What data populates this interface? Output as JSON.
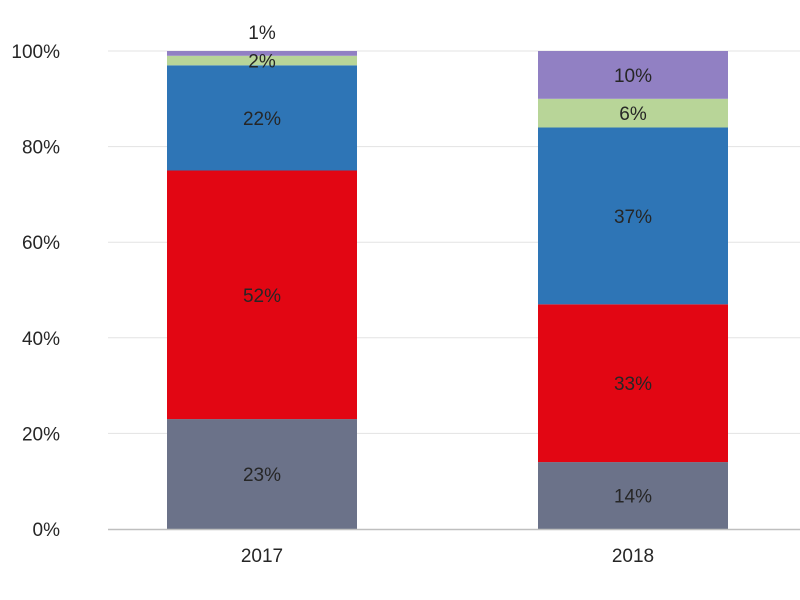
{
  "chart_data": {
    "type": "bar",
    "stacked": true,
    "title": "",
    "xlabel": "",
    "ylabel": "",
    "categories": [
      "2017",
      "2018"
    ],
    "ylim": [
      0,
      100
    ],
    "yticks": [
      "0%",
      "20%",
      "40%",
      "60%",
      "80%",
      "100%"
    ],
    "grid": true,
    "legend": "none",
    "series": [
      {
        "color": "#6b7289",
        "values": [
          23,
          14
        ],
        "labels": [
          "23%",
          "14%"
        ]
      },
      {
        "color": "#e20613",
        "values": [
          52,
          33
        ],
        "labels": [
          "52%",
          "33%"
        ]
      },
      {
        "color": "#2e75b6",
        "values": [
          22,
          37
        ],
        "labels": [
          "22%",
          "37%"
        ]
      },
      {
        "color": "#b8d598",
        "values": [
          2,
          6
        ],
        "labels": [
          "2%",
          "6%"
        ]
      },
      {
        "color": "#9180c3",
        "values": [
          1,
          10
        ],
        "labels": [
          "1%",
          "10%"
        ]
      }
    ]
  }
}
